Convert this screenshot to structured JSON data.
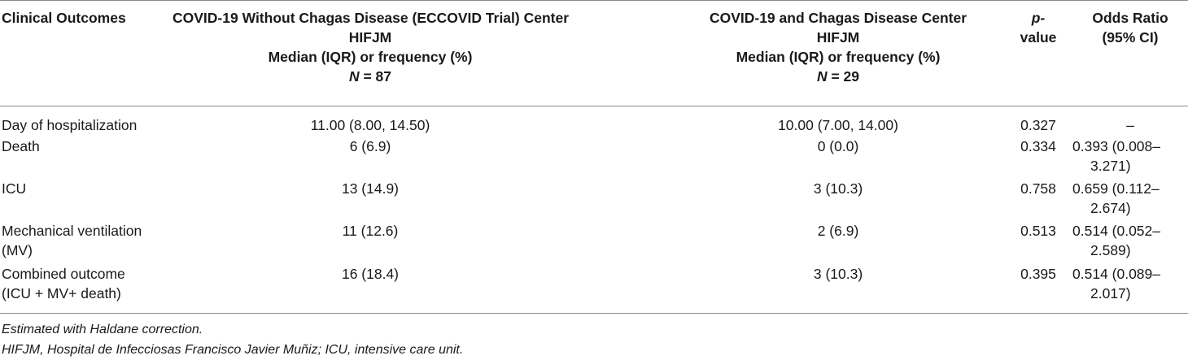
{
  "table": {
    "headers": {
      "col0": "Clinical Outcomes",
      "col1": {
        "line1": "COVID-19 Without Chagas Disease (ECCOVID Trial) Center",
        "line2": "HIFJM",
        "line3": "Median (IQR) or frequency (%)",
        "n_prefix": "N",
        "n_suffix": " = 87"
      },
      "col2": {
        "line1": "COVID-19 and Chagas Disease Center",
        "line2": "HIFJM",
        "line3": "Median (IQR) or frequency (%)",
        "n_prefix": "N",
        "n_suffix": " = 29"
      },
      "col3": {
        "line1": "p-",
        "line2": "value"
      },
      "col4": {
        "line1": "Odds Ratio",
        "line2": "(95% CI)"
      }
    },
    "rows": [
      {
        "label": [
          "Day of hospitalization"
        ],
        "without": "11.00 (8.00, 14.50)",
        "with": "10.00 (7.00, 14.00)",
        "p": "0.327",
        "or": [
          "–"
        ]
      },
      {
        "label": [
          "Death"
        ],
        "without": "6 (6.9)",
        "with": "0 (0.0)",
        "p": "0.334",
        "or": [
          "0.393 (0.008–",
          "3.271)"
        ]
      },
      {
        "label": [
          "ICU"
        ],
        "without": "13 (14.9)",
        "with": "3 (10.3)",
        "p": "0.758",
        "or": [
          "0.659 (0.112–",
          "2.674)"
        ]
      },
      {
        "label": [
          "Mechanical ventilation",
          "(MV)"
        ],
        "without": "11 (12.6)",
        "with": "2 (6.9)",
        "p": "0.513",
        "or": [
          "0.514 (0.052–",
          "2.589)"
        ]
      },
      {
        "label": [
          "Combined outcome",
          "(ICU + MV+ death)"
        ],
        "without": "16 (18.4)",
        "with": "3 (10.3)",
        "p": "0.395",
        "or": [
          "0.514 (0.089–",
          "2.017)"
        ]
      }
    ]
  },
  "footnotes": [
    "Estimated with Haldane correction.",
    "HIFJM, Hospital de Infecciosas Francisco Javier Muñiz; ICU, intensive care unit."
  ]
}
